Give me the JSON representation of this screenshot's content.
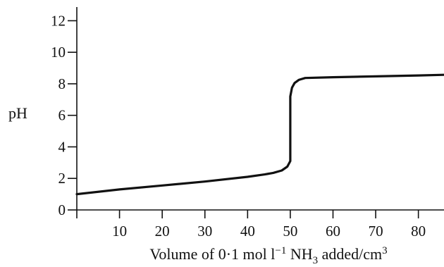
{
  "chart_data": {
    "type": "line",
    "title": "",
    "ylabel": "pH",
    "xlabel_parts": {
      "before": "Volume of 0·1 mol l",
      "exp1": "−1",
      "middle": " NH",
      "sub": "3",
      "after": " added/cm",
      "exp2": "3"
    },
    "xlim": [
      0,
      86
    ],
    "ylim": [
      0,
      12.6
    ],
    "x_ticks": [
      10,
      20,
      30,
      40,
      50,
      60,
      70,
      80
    ],
    "x_tick_labels": [
      "10",
      "20",
      "30",
      "40",
      "50",
      "60",
      "70",
      "80"
    ],
    "y_ticks": [
      0,
      2,
      4,
      6,
      8,
      10,
      12
    ],
    "y_tick_labels": [
      "0",
      "2",
      "4",
      "6",
      "8",
      "10",
      "12"
    ],
    "grid": false,
    "series": [
      {
        "x": [
          0,
          10,
          20,
          30,
          40,
          44,
          46,
          48,
          49.3,
          50,
          50,
          50.4,
          51,
          52,
          53.5,
          60,
          70,
          80,
          86
        ],
        "y": [
          1.0,
          1.3,
          1.55,
          1.8,
          2.1,
          2.25,
          2.35,
          2.5,
          2.75,
          3.1,
          7.2,
          7.75,
          8.05,
          8.25,
          8.37,
          8.42,
          8.47,
          8.53,
          8.57
        ]
      }
    ]
  }
}
